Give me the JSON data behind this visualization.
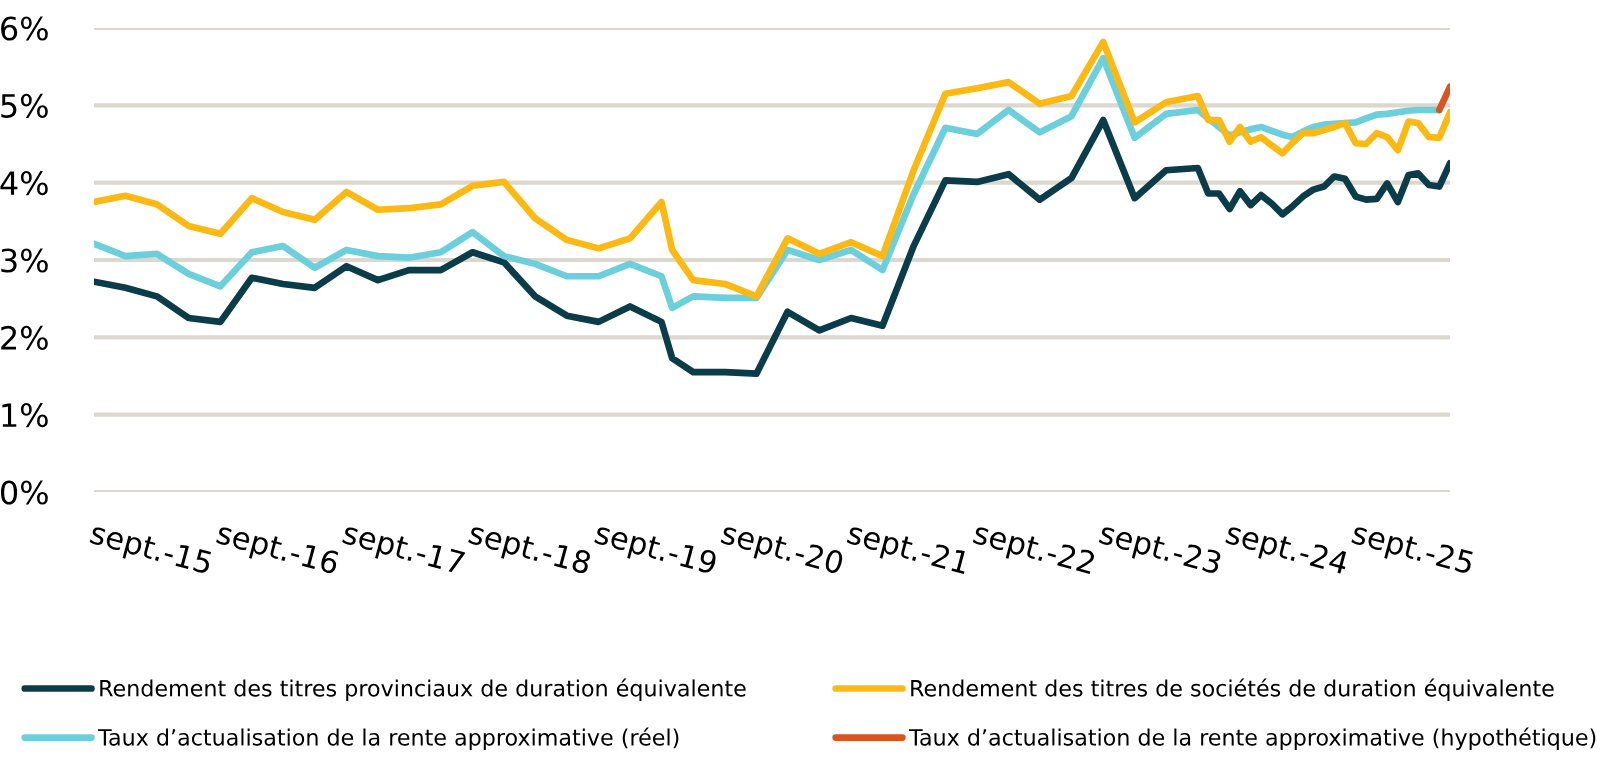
{
  "chart_data": {
    "type": "line",
    "x": [
      "2015-09",
      "2015-12",
      "2016-03",
      "2016-06",
      "2016-09",
      "2016-12",
      "2017-03",
      "2017-06",
      "2017-09",
      "2017-12",
      "2018-03",
      "2018-06",
      "2018-09",
      "2018-12",
      "2019-03",
      "2019-06",
      "2019-09",
      "2019-12",
      "2020-03",
      "2020-04",
      "2020-06",
      "2020-09",
      "2020-12",
      "2021-03",
      "2021-06",
      "2021-09",
      "2021-12",
      "2022-03",
      "2022-06",
      "2022-09",
      "2022-12",
      "2023-03",
      "2023-06",
      "2023-09",
      "2023-12",
      "2024-03",
      "2024-06",
      "2024-07",
      "2024-08",
      "2024-09",
      "2024-10",
      "2024-11",
      "2024-12",
      "2025-01",
      "2025-02",
      "2025-03",
      "2025-04",
      "2025-05",
      "2025-06",
      "2025-07",
      "2025-08",
      "2025-09",
      "2025-10",
      "2025-11",
      "2025-12",
      "2026-01",
      "2026-02",
      "2026-03",
      "2026-04",
      "2026-05",
      "2026-06"
    ],
    "series": [
      {
        "name": "Rendement des titres provinciaux de duration équivalente",
        "color": "#0b3c4a",
        "values": [
          2.72,
          2.64,
          2.53,
          2.25,
          2.2,
          2.77,
          2.69,
          2.64,
          2.92,
          2.74,
          2.87,
          2.87,
          3.1,
          2.97,
          2.53,
          2.28,
          2.2,
          2.4,
          2.2,
          1.73,
          1.55,
          1.55,
          1.53,
          2.33,
          2.09,
          2.25,
          2.15,
          3.18,
          4.03,
          4.01,
          4.11,
          3.78,
          4.06,
          4.81,
          3.8,
          4.16,
          4.19,
          3.86,
          3.86,
          3.66,
          3.89,
          3.71,
          3.84,
          3.73,
          3.59,
          3.69,
          3.82,
          3.91,
          3.95,
          4.08,
          4.05,
          3.82,
          3.78,
          3.79,
          3.99,
          3.75,
          4.1,
          4.12,
          3.97,
          3.95,
          4.25
        ]
      },
      {
        "name": "Taux d’actualisation de la rente approximative (réel)",
        "color": "#6ccfdc",
        "values": [
          3.21,
          3.05,
          3.08,
          2.82,
          2.66,
          3.1,
          3.18,
          2.9,
          3.13,
          3.05,
          3.03,
          3.1,
          3.36,
          3.05,
          2.95,
          2.79,
          2.79,
          2.95,
          2.79,
          2.38,
          2.53,
          2.51,
          2.51,
          3.13,
          3.0,
          3.13,
          2.87,
          3.85,
          4.71,
          4.63,
          4.94,
          4.65,
          4.86,
          5.61,
          4.58,
          4.89,
          4.94,
          4.83,
          4.72,
          4.61,
          4.65,
          4.69,
          4.72,
          4.67,
          4.62,
          4.59,
          4.66,
          4.72,
          4.75,
          4.76,
          4.77,
          4.78,
          4.83,
          4.88,
          4.89,
          4.91,
          4.93,
          4.94,
          4.94,
          4.94,
          null
        ]
      },
      {
        "name": "Rendement des titres de sociétés de duration équivalente",
        "color": "#fdb913",
        "values": [
          3.75,
          3.83,
          3.72,
          3.44,
          3.34,
          3.8,
          3.62,
          3.52,
          3.88,
          3.65,
          3.67,
          3.72,
          3.96,
          4.01,
          3.54,
          3.26,
          3.15,
          3.28,
          3.75,
          3.13,
          2.74,
          2.69,
          2.53,
          3.28,
          3.08,
          3.23,
          3.05,
          4.16,
          5.15,
          5.22,
          5.3,
          5.02,
          5.12,
          5.82,
          4.78,
          5.04,
          5.12,
          4.81,
          4.81,
          4.53,
          4.72,
          4.53,
          4.59,
          4.48,
          4.38,
          4.51,
          4.64,
          4.64,
          4.68,
          4.72,
          4.77,
          4.51,
          4.5,
          4.64,
          4.59,
          4.42,
          4.79,
          4.77,
          4.59,
          4.58,
          4.91
        ]
      },
      {
        "name": "Taux d’actualisation de la rente approximative (hypothétique)",
        "color": "#d9541e",
        "x": [
          "2026-05",
          "2026-06"
        ],
        "values": [
          4.94,
          5.24
        ]
      }
    ],
    "ylim": [
      0,
      6
    ],
    "yticks": [
      {
        "value": 0,
        "label": "0%"
      },
      {
        "value": 1,
        "label": "1%"
      },
      {
        "value": 2,
        "label": "2%"
      },
      {
        "value": 3,
        "label": "3%"
      },
      {
        "value": 4,
        "label": "4%"
      },
      {
        "value": 5,
        "label": "5%"
      },
      {
        "value": 6,
        "label": "6%"
      }
    ],
    "xlim": [
      "2015-09",
      "2026-06"
    ],
    "xticks": [
      {
        "value": "2015-09",
        "label": "sept.-15"
      },
      {
        "value": "2016-09",
        "label": "sept.-16"
      },
      {
        "value": "2017-09",
        "label": "sept.-17"
      },
      {
        "value": "2018-09",
        "label": "sept.-18"
      },
      {
        "value": "2019-09",
        "label": "sept.-19"
      },
      {
        "value": "2020-09",
        "label": "sept.-20"
      },
      {
        "value": "2021-09",
        "label": "sept.-21"
      },
      {
        "value": "2022-09",
        "label": "sept.-22"
      },
      {
        "value": "2023-09",
        "label": "sept.-23"
      },
      {
        "value": "2024-09",
        "label": "sept.-24"
      },
      {
        "value": "2025-09",
        "label": "sept.-25"
      }
    ],
    "grid": "y",
    "legend": "bottom",
    "marker": "none",
    "line_style": "solid"
  }
}
